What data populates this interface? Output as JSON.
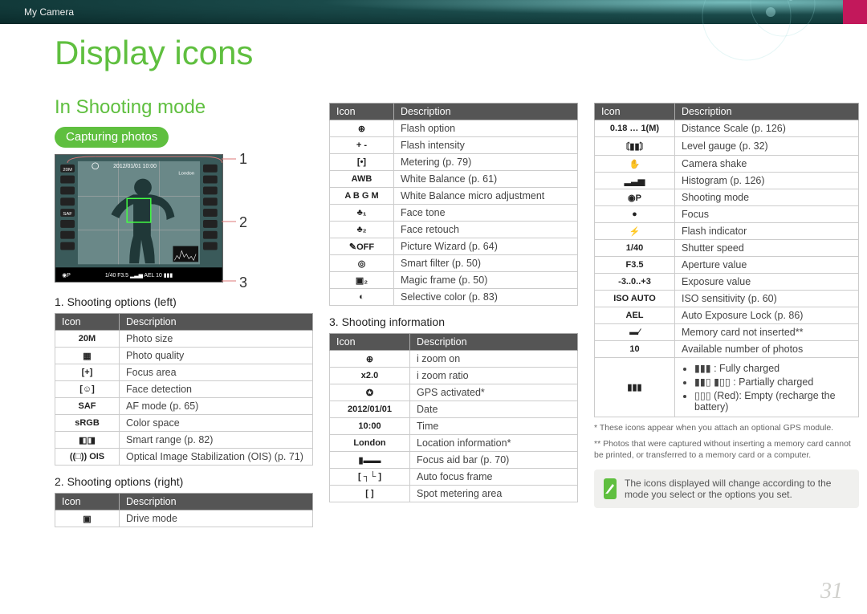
{
  "header": {
    "breadcrumb": "My Camera"
  },
  "page_title": "Display icons",
  "section_title": "In Shooting mode",
  "pill": "Capturing photos",
  "page_number": "31",
  "callouts": {
    "n1": "1",
    "n2": "2",
    "n3": "3"
  },
  "screenshot": {
    "date": "2012/01/01 10:00",
    "location": "London",
    "status_bar": "1/40  F3.5   -3..0..+3  AEL  10"
  },
  "col1": {
    "sub1_title": "1. Shooting options (left)",
    "table1_headers": {
      "icon": "Icon",
      "desc": "Description"
    },
    "table1_rows": [
      {
        "icon": "20M",
        "desc": "Photo size"
      },
      {
        "icon": "▦",
        "desc": "Photo quality"
      },
      {
        "icon": "[+]",
        "desc": "Focus area"
      },
      {
        "icon": "[☺]",
        "desc": "Face detection"
      },
      {
        "icon": "SAF",
        "desc": "AF mode (p. 65)"
      },
      {
        "icon": "sRGB",
        "desc": "Color space"
      },
      {
        "icon": "◧◨",
        "desc": "Smart range (p. 82)"
      },
      {
        "icon": "((□)) OIS",
        "desc": "Optical Image Stabilization (OIS) (p. 71)"
      }
    ],
    "sub2_title": "2. Shooting options (right)",
    "table2_headers": {
      "icon": "Icon",
      "desc": "Description"
    },
    "table2_rows": [
      {
        "icon": "▣",
        "desc": "Drive mode"
      }
    ]
  },
  "col2_top": {
    "headers": {
      "icon": "Icon",
      "desc": "Description"
    },
    "rows": [
      {
        "icon": "⊛",
        "desc": "Flash option"
      },
      {
        "icon": "+ -",
        "desc": "Flash intensity"
      },
      {
        "icon": "[•]",
        "desc": "Metering (p. 79)"
      },
      {
        "icon": "AWB",
        "desc": "White Balance (p. 61)"
      },
      {
        "icon": "A B G M",
        "desc": "White Balance micro adjustment"
      },
      {
        "icon": "♣₁",
        "desc": "Face tone"
      },
      {
        "icon": "♣₂",
        "desc": "Face retouch"
      },
      {
        "icon": "✎OFF",
        "desc": "Picture Wizard (p. 64)"
      },
      {
        "icon": "◎",
        "desc": "Smart filter (p. 50)"
      },
      {
        "icon": "▣₂",
        "desc": "Magic frame (p. 50)"
      },
      {
        "icon": "◐",
        "desc": "Selective color (p. 83)"
      }
    ],
    "sub3_title": "3. Shooting information",
    "table3_headers": {
      "icon": "Icon",
      "desc": "Description"
    },
    "table3_rows": [
      {
        "icon": "⊕",
        "desc": "i zoom on"
      },
      {
        "icon": "x2.0",
        "desc": "i zoom ratio"
      },
      {
        "icon": "✪",
        "desc": "GPS activated*"
      },
      {
        "icon": "2012/01/01",
        "desc": "Date"
      },
      {
        "icon": "10:00",
        "desc": "Time"
      },
      {
        "icon": "London",
        "desc": "Location information*"
      },
      {
        "icon": "▮▬▬",
        "desc": "Focus aid bar (p. 70)"
      },
      {
        "icon": "[ ┐└ ]",
        "desc": "Auto focus frame"
      },
      {
        "icon": "[   ]",
        "desc": "Spot metering area"
      }
    ]
  },
  "col3": {
    "headers": {
      "icon": "Icon",
      "desc": "Description"
    },
    "rows": [
      {
        "icon": "0.18 … 1(M)",
        "desc": "Distance Scale (p. 126)"
      },
      {
        "icon": "〘▮▮〙",
        "desc": "Level gauge (p. 32)"
      },
      {
        "icon": "✋",
        "desc": "Camera shake"
      },
      {
        "icon": "▂▃▅",
        "desc": "Histogram (p. 126)"
      },
      {
        "icon": "◉P",
        "desc": "Shooting mode"
      },
      {
        "icon": "●",
        "desc": "Focus"
      },
      {
        "icon": "⚡",
        "desc": "Flash indicator"
      },
      {
        "icon": "1/40",
        "desc": "Shutter speed"
      },
      {
        "icon": "F3.5",
        "desc": "Aperture value"
      },
      {
        "icon": "-3..0..+3",
        "desc": "Exposure value"
      },
      {
        "icon": "ISO AUTO",
        "desc": "ISO sensitivity (p. 60)"
      },
      {
        "icon": "AEL",
        "desc": "Auto Exposure Lock (p. 86)"
      },
      {
        "icon": "▬⁄",
        "desc": "Memory card not inserted**"
      },
      {
        "icon": "10",
        "desc": "Available number of photos"
      }
    ],
    "battery": {
      "icon": "▮▮▮",
      "items": [
        "▮▮▮ : Fully charged",
        "▮▮▯ ▮▯▯ : Partially charged",
        "▯▯▯ (Red): Empty (recharge the battery)"
      ]
    },
    "footnote1": "* These icons appear when you attach an optional GPS module.",
    "footnote2": "** Photos that were captured without inserting a memory card cannot be printed, or transferred to a memory card or a computer.",
    "note_text": "The icons displayed will change according to the mode you select or the options you set."
  }
}
